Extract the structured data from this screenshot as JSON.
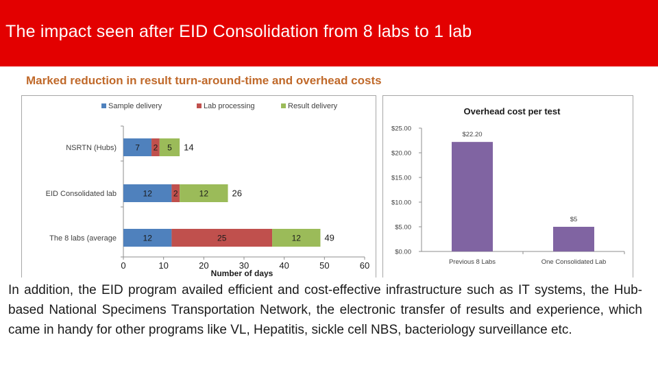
{
  "slide": {
    "title": "The impact seen after EID Consolidation from 8 labs to 1 lab",
    "subtitle": "Marked reduction in result turn-around-time and overhead costs",
    "body": "In addition, the EID program availed efficient and cost-effective infrastructure such as IT systems, the Hub-based National Specimens Transportation Network, the electronic transfer of results and experience,  which came in handy for other programs like VL, Hepatitis, sickle cell NBS, bacteriology surveillance etc."
  },
  "colors": {
    "title_bar": "#e30000",
    "subtitle": "#c0692a",
    "sample_delivery": "#4f81bd",
    "lab_processing": "#c0504d",
    "result_delivery": "#9bbb59",
    "overhead_bar": "#8064a2"
  },
  "chart_data": [
    {
      "type": "bar",
      "orientation": "horizontal",
      "stacked": true,
      "categories": [
        "NSRTN (Hubs)",
        "EID Consolidated lab",
        "The 8 labs (average"
      ],
      "series": [
        {
          "name": "Sample delivery",
          "values": [
            7,
            12,
            12
          ]
        },
        {
          "name": "Lab processing",
          "values": [
            2,
            2,
            25
          ]
        },
        {
          "name": "Result delivery",
          "values": [
            5,
            12,
            12
          ]
        }
      ],
      "totals": [
        14,
        26,
        49
      ],
      "xlabel": "Number of days",
      "xlim": [
        0,
        60
      ],
      "xticks": [
        "0",
        "10",
        "20",
        "30",
        "40",
        "50",
        "60"
      ],
      "legend": "top",
      "grid": false
    },
    {
      "type": "bar",
      "title": "Overhead cost per test",
      "categories": [
        "Previous 8 Labs",
        "One Consolidated Lab"
      ],
      "values": [
        22.2,
        5
      ],
      "data_labels": [
        "$22.20",
        "$5"
      ],
      "ylim": [
        0,
        25
      ],
      "yticks": [
        "$0.00",
        "$5.00",
        "$10.00",
        "$15.00",
        "$20.00",
        "$25.00"
      ],
      "grid": false,
      "legend": "none"
    }
  ]
}
